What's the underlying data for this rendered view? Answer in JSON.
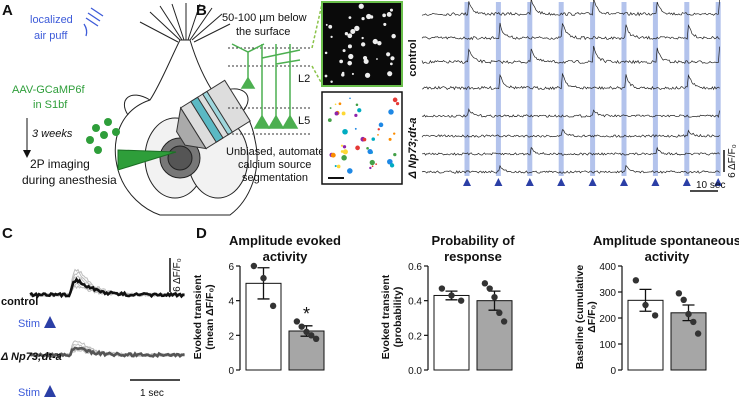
{
  "panel_a": {
    "label": "A",
    "air_puff_line1": "localized",
    "air_puff_line2": "air puff",
    "virus_line1": "AAV-GCaMP6f",
    "virus_line2": "in S1bf",
    "delay": "3 weeks",
    "imaging_line1": "2P imaging",
    "imaging_line2": "during anesthesia"
  },
  "panel_b": {
    "label": "B",
    "depth_line1": "50-100 µm below",
    "depth_line2": "the surface",
    "layer_upper": "L2",
    "layer_lower": "L5",
    "method_line1": "Unbiased, automated",
    "method_line2": "calcium source",
    "method_line3": "segmentation",
    "group_control": "control",
    "group_mutant": "Δ Np73;dt-a",
    "scale_y": "6 ΔF/F₀",
    "scale_x": "10 sec"
  },
  "panel_c": {
    "label": "C",
    "scale_y": "6 ΔF/F₀",
    "group_control": "control",
    "stim_upper": "Stim",
    "group_mutant": "Δ Np73;dt-a",
    "stim_lower": "Stim",
    "scale_x": "1 sec"
  },
  "panel_d": {
    "label": "D"
  },
  "chart_data": [
    {
      "type": "bar",
      "title": "Amplitude evoked activity",
      "ylabel": "Evoked transient (mean ΔF/F₀)",
      "values": [
        5.0,
        2.25
      ],
      "errors": [
        0.9,
        0.3
      ],
      "colors": [
        "#ffffff",
        "#a6a6a6"
      ],
      "points": [
        [
          6.0,
          5.3,
          3.7
        ],
        [
          2.8,
          2.5,
          2.2,
          2.0,
          1.8
        ]
      ],
      "significance": "*",
      "ylim": [
        0,
        6
      ],
      "yticks": [
        0,
        2,
        4,
        6
      ]
    },
    {
      "type": "bar",
      "title": "Probability of response",
      "ylabel": "Evoked transient (probability)",
      "values": [
        0.43,
        0.4
      ],
      "errors": [
        0.025,
        0.055
      ],
      "colors": [
        "#ffffff",
        "#a6a6a6"
      ],
      "points": [
        [
          0.47,
          0.43,
          0.4
        ],
        [
          0.5,
          0.47,
          0.42,
          0.33,
          0.28
        ]
      ],
      "ylim": [
        0,
        0.6
      ],
      "yticks": [
        {
          "value": 0,
          "label": "0.0"
        },
        {
          "value": 0.2,
          "label": "0.2"
        },
        {
          "value": 0.4,
          "label": "0.4"
        },
        {
          "value": 0.6,
          "label": "0.6"
        }
      ]
    },
    {
      "type": "bar",
      "title": "Amplitude spontaneous activity",
      "ylabel": "Baseline (cumulative ΔF/F₀)",
      "values": [
        268,
        220
      ],
      "errors": [
        42,
        30
      ],
      "colors": [
        "#ffffff",
        "#a6a6a6"
      ],
      "points": [
        [
          345,
          250,
          210
        ],
        [
          295,
          270,
          215,
          185,
          140
        ]
      ],
      "ylim": [
        0,
        400
      ],
      "yticks": [
        0,
        100,
        200,
        300,
        400
      ]
    }
  ]
}
